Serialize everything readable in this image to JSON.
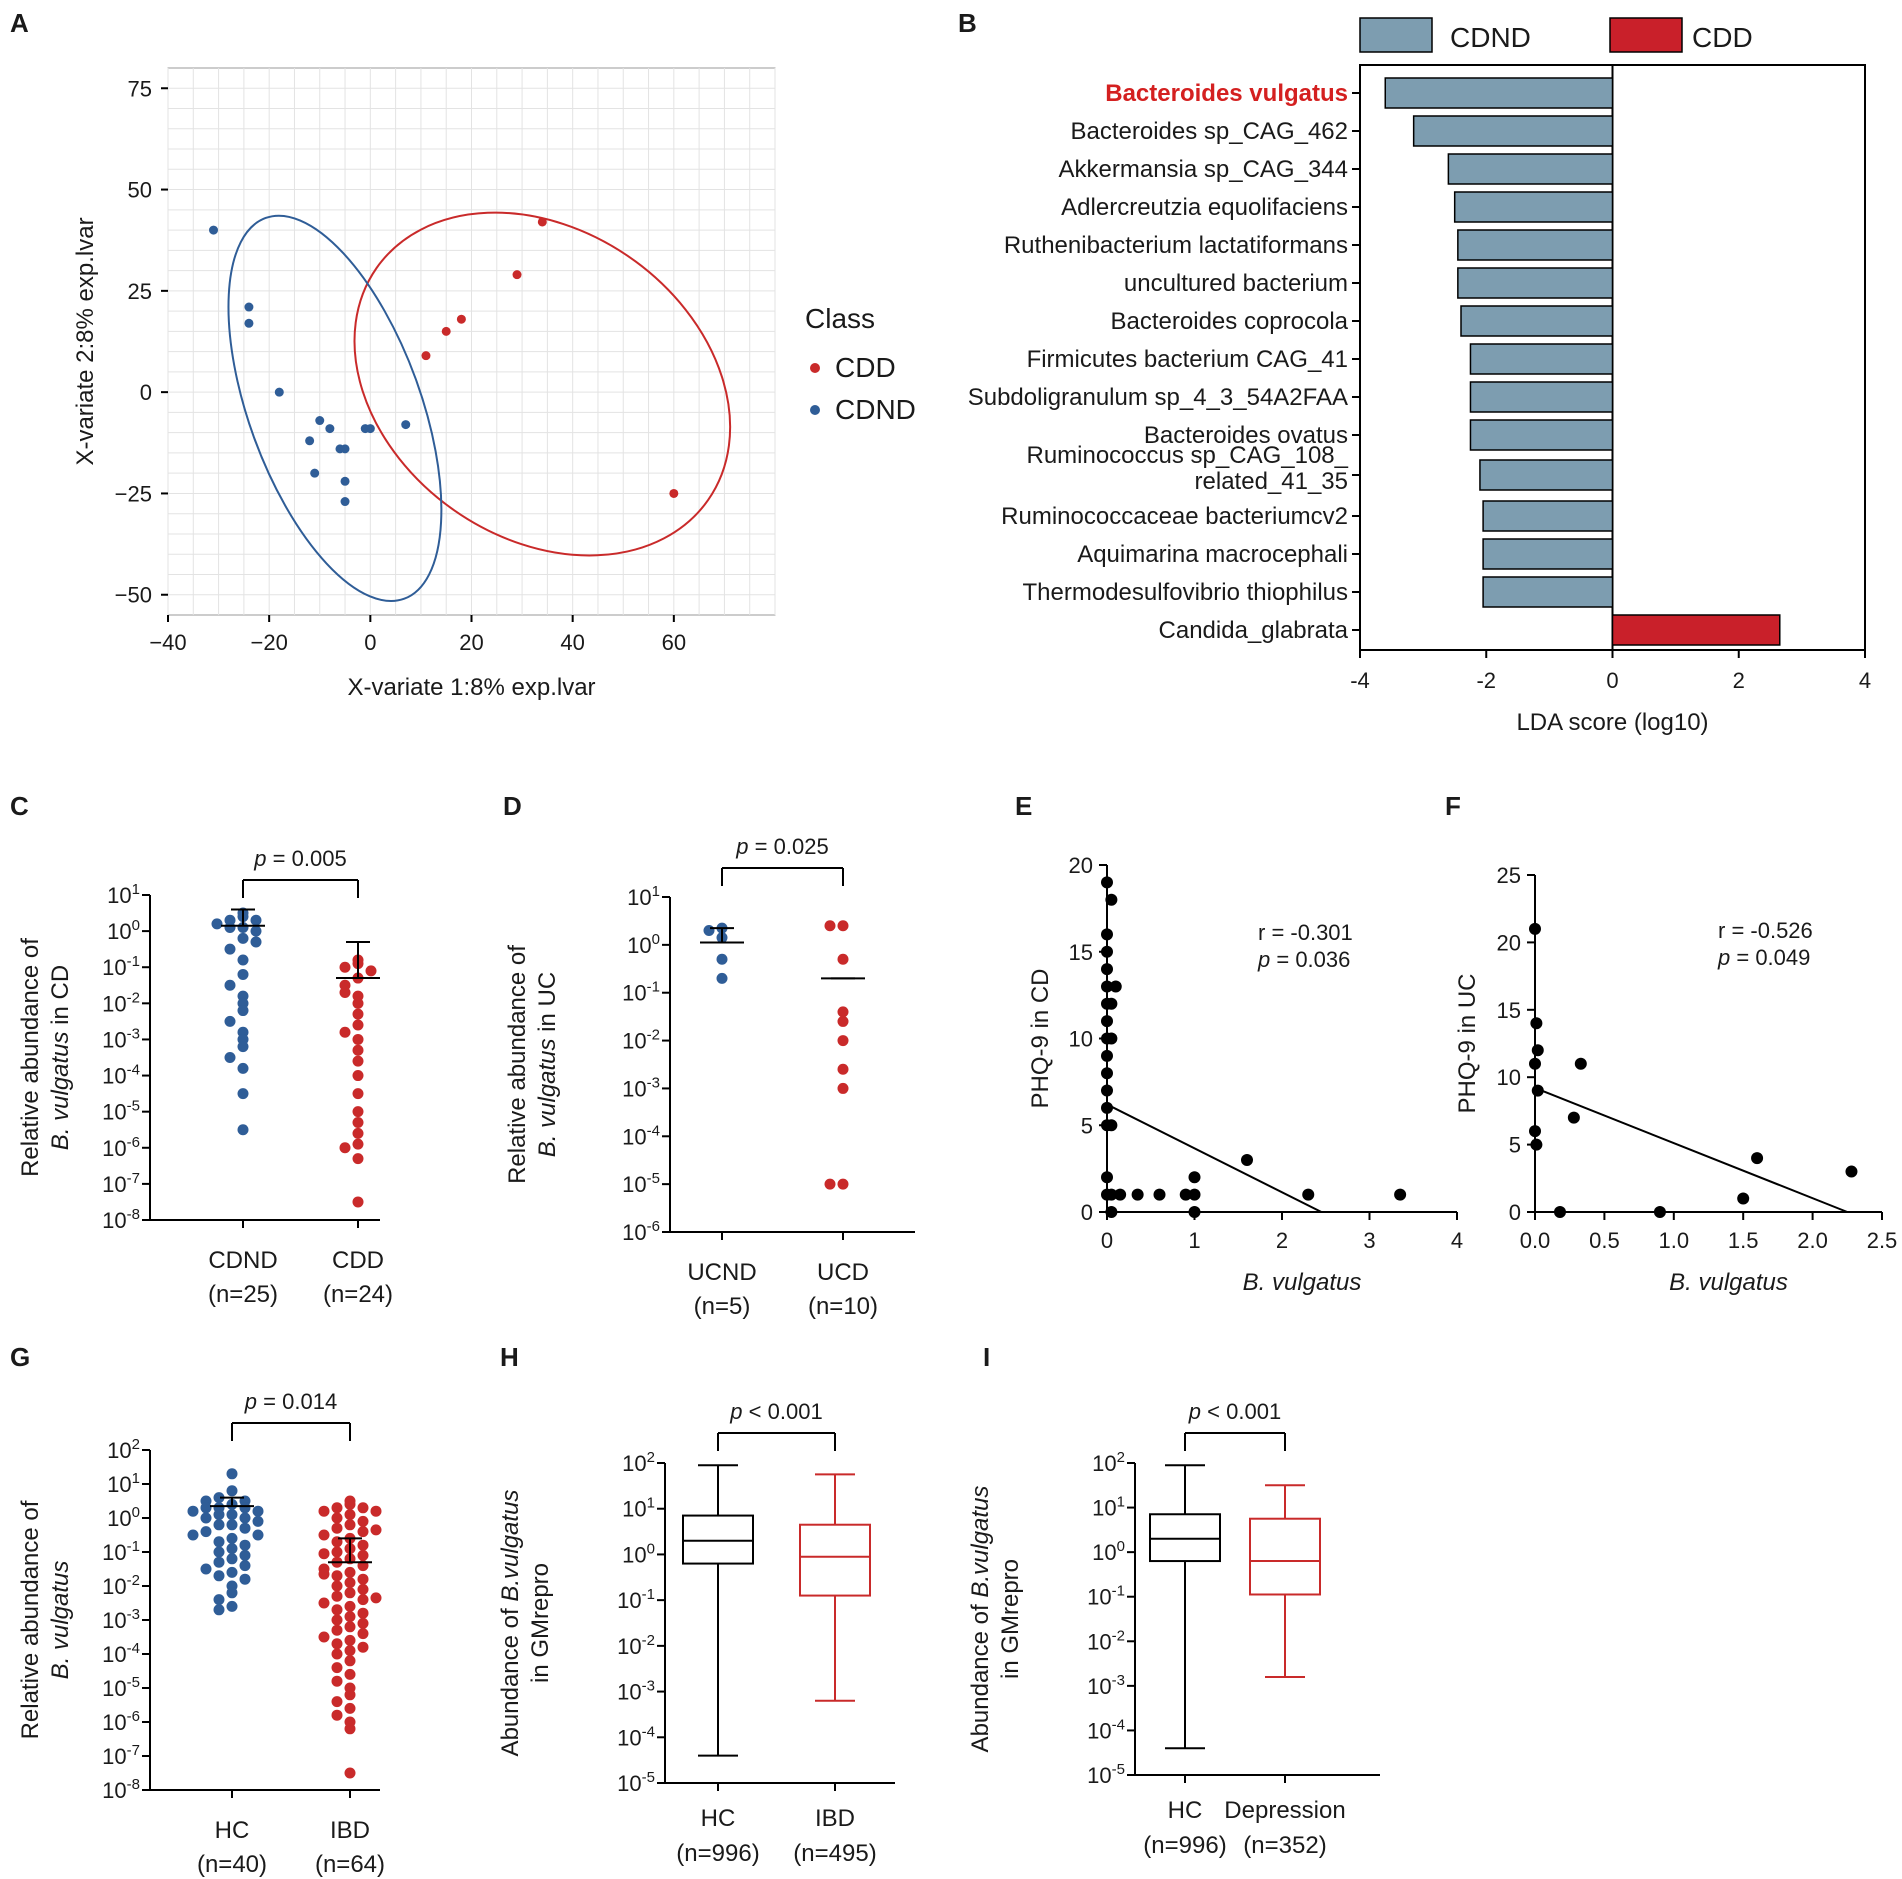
{
  "colors": {
    "cdnd": "#2f5d97",
    "cdd": "#c92a2a",
    "lda_cdnd": "#7d9db0",
    "lda_cdd": "#c9202a",
    "grid": "#e3e3e3",
    "line": "#000000"
  },
  "chart_data": [
    {
      "id": "A",
      "panel_label": "A",
      "type": "scatter",
      "xlabel": "X-variate 1:8% exp.lvar",
      "ylabel": "X-variate 2:8% exp.lvar",
      "xlim": [
        -40,
        80
      ],
      "ylim": [
        -55,
        80
      ],
      "xticks": [
        "−40",
        "−20",
        "0",
        "20",
        "40",
        "60"
      ],
      "yticks": [
        "75",
        "50",
        "25",
        "0",
        "−25",
        "−50"
      ],
      "legend_title": "Class",
      "series": [
        {
          "name": "CDD",
          "points": [
            [
              11,
              9
            ],
            [
              15,
              15
            ],
            [
              18,
              18
            ],
            [
              29,
              29
            ],
            [
              34,
              42
            ],
            [
              60,
              -25
            ]
          ],
          "ellipse": {
            "cx": 34,
            "cy": 2,
            "rx": 40,
            "ry": 38,
            "angle_deg": 35
          }
        },
        {
          "name": "CDND",
          "points": [
            [
              -31,
              40
            ],
            [
              -24,
              21
            ],
            [
              -24,
              17
            ],
            [
              -18,
              0
            ],
            [
              -12,
              -12
            ],
            [
              -11,
              -20
            ],
            [
              -10,
              -7
            ],
            [
              -8,
              -9
            ],
            [
              -6,
              -14
            ],
            [
              -5,
              -22
            ],
            [
              -5,
              -27
            ],
            [
              -5,
              -14
            ],
            [
              -1,
              -9
            ],
            [
              0,
              -9
            ],
            [
              7,
              -8
            ]
          ],
          "ellipse": {
            "cx": -7,
            "cy": -4,
            "rx": 17,
            "ry": 50,
            "angle_deg": -20
          }
        }
      ]
    },
    {
      "id": "B",
      "panel_label": "B",
      "type": "bar",
      "legend": [
        "CDND",
        "CDD"
      ],
      "xlabel": "LDA score   (log10)",
      "xlim": [
        -4,
        4
      ],
      "xticks": [
        "-4",
        "-2",
        "0",
        "2",
        "4"
      ],
      "categories": [
        "Bacteroides vulgatus",
        "Bacteroides sp_CAG_462",
        "Akkermansia sp_CAG_344",
        "Adlercreutzia equolifaciens",
        "Ruthenibacterium lactatiformans",
        "uncultured bacterium",
        "Bacteroides coprocola",
        "Firmicutes bacterium CAG_41",
        "Subdoligranulum sp_4_3_54A2FAA",
        "Bacteroides ovatus",
        "Ruminococcus sp_CAG_108_ related_41_35",
        "Ruminococcaceae bacteriumcv2",
        "Aquimarina macrocephali",
        "Thermodesulfovibrio thiophilus",
        "Candida_glabrata"
      ],
      "label_lines": [
        [
          "Bacteroides vulgatus"
        ],
        [
          "Bacteroides sp_CAG_462"
        ],
        [
          "Akkermansia sp_CAG_344"
        ],
        [
          "Adlercreutzia equolifaciens"
        ],
        [
          "Ruthenibacterium lactatiformans"
        ],
        [
          "uncultured bacterium"
        ],
        [
          "Bacteroides coprocola"
        ],
        [
          "Firmicutes bacterium CAG_41"
        ],
        [
          "Subdoligranulum sp_4_3_54A2FAA"
        ],
        [
          "Bacteroides ovatus"
        ],
        [
          "Ruminococcus sp_CAG_108_",
          "related_41_35"
        ],
        [
          "Ruminococcaceae bacteriumcv2"
        ],
        [
          "Aquimarina macrocephali"
        ],
        [
          "Thermodesulfovibrio thiophilus"
        ],
        [
          "Candida_glabrata"
        ]
      ],
      "values": [
        -3.6,
        -3.15,
        -2.6,
        -2.5,
        -2.45,
        -2.45,
        -2.4,
        -2.25,
        -2.25,
        -2.25,
        -2.1,
        -2.05,
        -2.05,
        -2.05,
        2.65
      ]
    },
    {
      "id": "C",
      "panel_label": "C",
      "type": "dot",
      "ylabel": [
        "Relative abundance of",
        "B. vulgatus in CD"
      ],
      "ylim_exp": [
        -8,
        1
      ],
      "p_text": "p = 0.005",
      "groups": [
        {
          "label": "CDND",
          "n": "(n=25)",
          "mean_exp": 0.15,
          "err_exp": 0.6,
          "points": [
            0.5,
            0.4,
            0.3,
            0.3,
            0.2,
            0.1,
            0.1,
            0.0,
            -0.2,
            -0.5,
            -0.8,
            -1.2,
            -1.5,
            -1.8,
            -2.0,
            -2.2,
            -2.5,
            -2.8,
            -3.0,
            -3.2,
            -3.5,
            -3.8,
            -4.5,
            -5.5,
            -0.3
          ]
        },
        {
          "label": "CDD",
          "n": "(n=24)",
          "mean_exp": -1.3,
          "err_exp": -0.3,
          "points": [
            -0.8,
            -0.9,
            -1.0,
            -1.1,
            -1.3,
            -1.5,
            -1.8,
            -2.0,
            -2.3,
            -2.6,
            -2.8,
            -3.0,
            -3.3,
            -3.6,
            -4.0,
            -4.5,
            -5.0,
            -5.3,
            -5.6,
            -5.9,
            -6.0,
            -6.3,
            -7.5,
            -1.7
          ]
        }
      ]
    },
    {
      "id": "D",
      "panel_label": "D",
      "type": "dot",
      "ylabel": [
        "Relative abundance of",
        "B. vulgatus in UC"
      ],
      "ylim_exp": [
        -6,
        1
      ],
      "p_text": "p = 0.025",
      "groups": [
        {
          "label": "UCND",
          "n": "(n=5)",
          "mean_exp": 0.05,
          "err_exp": 0.35,
          "points": [
            0.35,
            0.3,
            0.15,
            -0.3,
            -0.7
          ]
        },
        {
          "label": "UCD",
          "n": "(n=10)",
          "mean_exp": -0.7,
          "err_exp": -0.7,
          "points": [
            0.4,
            0.4,
            -0.3,
            -1.4,
            -1.6,
            -2.0,
            -2.6,
            -3.0,
            -5.0,
            -5.0
          ]
        }
      ]
    },
    {
      "id": "E",
      "panel_label": "E",
      "type": "scatter",
      "xlabel": "B. vulgatus",
      "ylabel": "PHQ-9 in CD",
      "xlim": [
        0,
        4
      ],
      "ylim": [
        0,
        20
      ],
      "xticks": [
        "0",
        "1",
        "2",
        "3",
        "4"
      ],
      "yticks": [
        "0",
        "5",
        "10",
        "15",
        "20"
      ],
      "r_text": "r  = -0.301",
      "p_text": "p = 0.036",
      "line": [
        [
          0,
          6.2
        ],
        [
          2.45,
          0
        ]
      ],
      "points": [
        [
          0,
          19
        ],
        [
          0.05,
          18
        ],
        [
          0,
          16
        ],
        [
          0,
          15
        ],
        [
          0,
          14
        ],
        [
          0,
          13
        ],
        [
          0.1,
          13
        ],
        [
          0,
          12
        ],
        [
          0.05,
          12
        ],
        [
          0,
          11
        ],
        [
          0,
          10
        ],
        [
          0.05,
          10
        ],
        [
          0,
          9
        ],
        [
          0,
          8
        ],
        [
          0,
          7
        ],
        [
          0,
          6
        ],
        [
          0,
          5
        ],
        [
          0.05,
          5
        ],
        [
          0,
          2
        ],
        [
          0,
          1
        ],
        [
          0.05,
          1
        ],
        [
          0.15,
          1
        ],
        [
          0.35,
          1
        ],
        [
          0.6,
          1
        ],
        [
          0.9,
          1
        ],
        [
          1.0,
          1
        ],
        [
          1.0,
          2
        ],
        [
          1.0,
          0
        ],
        [
          0.05,
          0
        ],
        [
          1.6,
          3
        ],
        [
          2.3,
          1
        ],
        [
          3.35,
          1
        ]
      ]
    },
    {
      "id": "F",
      "panel_label": "F",
      "type": "scatter",
      "xlabel": "B. vulgatus",
      "ylabel": "PHQ-9 in UC",
      "xlim": [
        0,
        2.5
      ],
      "ylim": [
        0,
        25
      ],
      "xticks": [
        "0.0",
        "0.5",
        "1.0",
        "1.5",
        "2.0",
        "2.5"
      ],
      "yticks": [
        "0",
        "5",
        "10",
        "15",
        "20",
        "25"
      ],
      "r_text": "r = -0.526",
      "p_text": "p = 0.049",
      "line": [
        [
          0,
          9.2
        ],
        [
          2.25,
          0
        ]
      ],
      "points": [
        [
          0,
          21
        ],
        [
          0.01,
          14
        ],
        [
          0.02,
          12
        ],
        [
          0,
          11
        ],
        [
          0.02,
          9
        ],
        [
          0,
          6
        ],
        [
          0.01,
          5
        ],
        [
          0.28,
          7
        ],
        [
          0.33,
          11
        ],
        [
          0.18,
          0
        ],
        [
          0.9,
          0
        ],
        [
          1.5,
          1
        ],
        [
          1.6,
          4
        ],
        [
          2.28,
          3
        ]
      ]
    },
    {
      "id": "G",
      "panel_label": "G",
      "type": "dot",
      "ylabel": [
        "Relative abundance of",
        "B. vulgatus"
      ],
      "ylim_exp": [
        -8,
        2
      ],
      "p_text": "p = 0.014",
      "groups": [
        {
          "label": "HC",
          "n": "(n=40)",
          "mean_exp": 0.35,
          "err_exp": 0.6,
          "points": [
            1.3,
            0.8,
            0.6,
            0.5,
            0.5,
            0.4,
            0.3,
            0.3,
            0.3,
            0.2,
            0.1,
            0.1,
            0.0,
            0.0,
            -0.1,
            -0.2,
            -0.2,
            -0.3,
            -0.4,
            -0.5,
            -0.5,
            -0.6,
            -0.7,
            -0.8,
            -0.9,
            -1.0,
            -1.1,
            -1.2,
            -1.3,
            -1.4,
            -1.5,
            -1.6,
            -1.7,
            -1.8,
            -2.0,
            -2.2,
            -2.4,
            -2.6,
            -2.7,
            0.2
          ]
        },
        {
          "label": "IBD",
          "n": "(n=64)",
          "mean_exp": -1.3,
          "err_exp": -0.6,
          "points": [
            0.5,
            0.4,
            0.3,
            0.3,
            0.2,
            0.2,
            0.1,
            0.0,
            -0.1,
            -0.2,
            -0.3,
            -0.4,
            -0.5,
            -0.6,
            -0.7,
            -0.8,
            -0.9,
            -1.0,
            -1.1,
            -1.2,
            -1.3,
            -1.4,
            -1.5,
            -1.6,
            -1.7,
            -1.8,
            -1.9,
            -2.0,
            -2.1,
            -2.2,
            -2.3,
            -2.4,
            -2.5,
            -2.6,
            -2.7,
            -2.8,
            -2.9,
            -3.0,
            -3.1,
            -3.2,
            -3.3,
            -3.4,
            -3.5,
            -3.6,
            -3.7,
            -3.8,
            -3.9,
            -4.0,
            -4.2,
            -4.4,
            -4.6,
            -4.8,
            -5.0,
            -5.2,
            -5.4,
            -5.6,
            -5.8,
            -6.0,
            -6.2,
            -7.5,
            -0.35,
            -1.05,
            -1.65,
            -2.35
          ]
        }
      ]
    },
    {
      "id": "H",
      "panel_label": "H",
      "type": "box",
      "ylabel": [
        "Abundance of B.vulgatus",
        "in GMrepro"
      ],
      "ylim_exp": [
        -5,
        2
      ],
      "p_text": "p < 0.001",
      "groups": [
        {
          "label": "HC",
          "n": "(n=996)",
          "color": "#000000",
          "whisker_low": -4.4,
          "q1": -0.2,
          "median": 0.3,
          "q3": 0.85,
          "whisker_high": 1.95
        },
        {
          "label": "IBD",
          "n": "(n=495)",
          "color": "#c92a2a",
          "whisker_low": -3.2,
          "q1": -0.9,
          "median": -0.05,
          "q3": 0.65,
          "whisker_high": 1.75
        }
      ]
    },
    {
      "id": "I",
      "panel_label": "I",
      "type": "box",
      "ylabel": [
        "Abundance of B.vulgatus",
        "in GMrepro"
      ],
      "ylim_exp": [
        -5,
        2
      ],
      "p_text": "p < 0.001",
      "groups": [
        {
          "label": "HC",
          "n": "(n=996)",
          "color": "#000000",
          "whisker_low": -4.4,
          "q1": -0.2,
          "median": 0.3,
          "q3": 0.85,
          "whisker_high": 1.95
        },
        {
          "label": "Depression",
          "n": "(n=352)",
          "color": "#c92a2a",
          "whisker_low": -2.8,
          "q1": -0.95,
          "median": -0.2,
          "q3": 0.75,
          "whisker_high": 1.5
        }
      ]
    }
  ]
}
